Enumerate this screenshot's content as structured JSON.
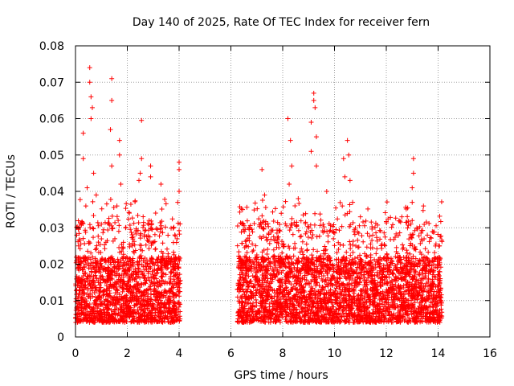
{
  "chart_data": {
    "type": "scatter",
    "title": "Day 140 of 2025, Rate Of TEC Index for receiver fern",
    "xlabel": "GPS time / hours",
    "ylabel": "ROTI / TECUs",
    "xlim": [
      0,
      16
    ],
    "ylim": [
      0,
      0.08
    ],
    "xticks": [
      0,
      2,
      4,
      6,
      8,
      10,
      12,
      14,
      16
    ],
    "yticks": [
      0,
      0.01,
      0.02,
      0.03,
      0.04,
      0.05,
      0.06,
      0.07,
      0.08
    ],
    "xtick_labels": [
      "0",
      "2",
      "4",
      "6",
      "8",
      "10",
      "12",
      "14",
      "16"
    ],
    "ytick_labels": [
      "0",
      "0.01",
      "0.02",
      "0.03",
      "0.04",
      "0.05",
      "0.06",
      "0.07",
      "0.08"
    ],
    "grid": true,
    "marker": "+",
    "series": [
      {
        "name": "ROTI",
        "color": "#ff0000",
        "segments": [
          {
            "x_range": [
              0.0,
              4.05
            ],
            "typical_range": [
              0.004,
              0.022
            ],
            "median": 0.011
          },
          {
            "x_range": [
              6.25,
              14.15
            ],
            "typical_range": [
              0.004,
              0.022
            ],
            "median": 0.011
          }
        ],
        "peaks": [
          {
            "x": 0.3,
            "y": 0.049
          },
          {
            "x": 0.3,
            "y": 0.056
          },
          {
            "x": 0.45,
            "y": 0.041
          },
          {
            "x": 0.55,
            "y": 0.074
          },
          {
            "x": 0.55,
            "y": 0.07
          },
          {
            "x": 0.6,
            "y": 0.066
          },
          {
            "x": 0.6,
            "y": 0.06
          },
          {
            "x": 0.65,
            "y": 0.063
          },
          {
            "x": 0.7,
            "y": 0.045
          },
          {
            "x": 0.4,
            "y": 0.036
          },
          {
            "x": 0.8,
            "y": 0.039
          },
          {
            "x": 1.0,
            "y": 0.031
          },
          {
            "x": 1.4,
            "y": 0.071
          },
          {
            "x": 1.4,
            "y": 0.065
          },
          {
            "x": 1.35,
            "y": 0.057
          },
          {
            "x": 1.4,
            "y": 0.047
          },
          {
            "x": 1.7,
            "y": 0.054
          },
          {
            "x": 1.7,
            "y": 0.05
          },
          {
            "x": 1.75,
            "y": 0.042
          },
          {
            "x": 1.6,
            "y": 0.036
          },
          {
            "x": 2.55,
            "y": 0.0595
          },
          {
            "x": 2.55,
            "y": 0.049
          },
          {
            "x": 2.5,
            "y": 0.045
          },
          {
            "x": 2.45,
            "y": 0.043
          },
          {
            "x": 2.9,
            "y": 0.047
          },
          {
            "x": 2.9,
            "y": 0.044
          },
          {
            "x": 3.3,
            "y": 0.042
          },
          {
            "x": 4.0,
            "y": 0.048
          },
          {
            "x": 4.0,
            "y": 0.046
          },
          {
            "x": 4.0,
            "y": 0.04
          },
          {
            "x": 6.45,
            "y": 0.035
          },
          {
            "x": 7.2,
            "y": 0.046
          },
          {
            "x": 7.3,
            "y": 0.039
          },
          {
            "x": 8.2,
            "y": 0.06
          },
          {
            "x": 8.3,
            "y": 0.054
          },
          {
            "x": 8.35,
            "y": 0.047
          },
          {
            "x": 8.25,
            "y": 0.042
          },
          {
            "x": 8.6,
            "y": 0.038
          },
          {
            "x": 9.2,
            "y": 0.067
          },
          {
            "x": 9.2,
            "y": 0.065
          },
          {
            "x": 9.25,
            "y": 0.063
          },
          {
            "x": 9.1,
            "y": 0.059
          },
          {
            "x": 9.3,
            "y": 0.055
          },
          {
            "x": 9.1,
            "y": 0.051
          },
          {
            "x": 9.3,
            "y": 0.047
          },
          {
            "x": 9.7,
            "y": 0.04
          },
          {
            "x": 10.35,
            "y": 0.049
          },
          {
            "x": 10.4,
            "y": 0.044
          },
          {
            "x": 10.5,
            "y": 0.054
          },
          {
            "x": 10.55,
            "y": 0.05
          },
          {
            "x": 10.6,
            "y": 0.043
          },
          {
            "x": 10.7,
            "y": 0.037
          },
          {
            "x": 10.3,
            "y": 0.036
          },
          {
            "x": 11.0,
            "y": 0.033
          },
          {
            "x": 12.6,
            "y": 0.033
          },
          {
            "x": 13.05,
            "y": 0.049
          },
          {
            "x": 13.05,
            "y": 0.045
          },
          {
            "x": 13.0,
            "y": 0.041
          },
          {
            "x": 13.0,
            "y": 0.037
          },
          {
            "x": 13.0,
            "y": 0.032
          },
          {
            "x": 13.0,
            "y": 0.028
          },
          {
            "x": 13.9,
            "y": 0.025
          }
        ]
      }
    ]
  }
}
